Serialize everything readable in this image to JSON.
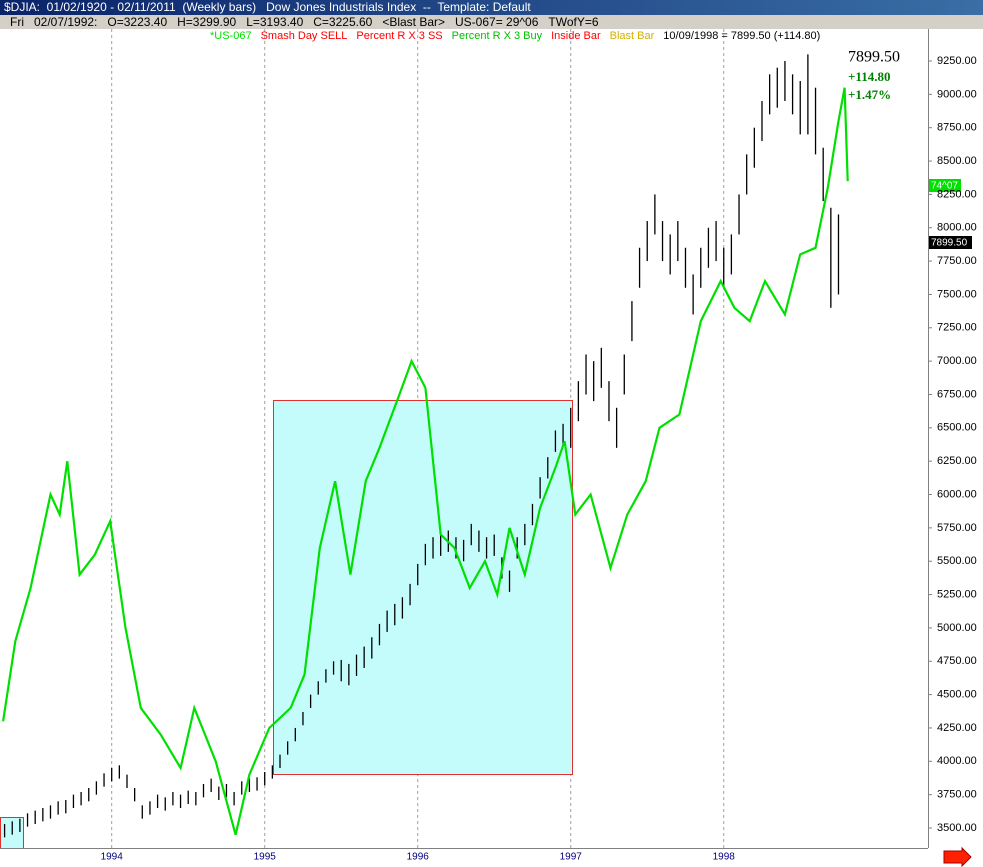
{
  "chart_data": {
    "type": "ohlc",
    "title": "$DJIA:  01/02/1920 - 02/11/2011  (Weekly bars)   Dow Jones Industrials Index  --  Template: Default",
    "bar_info": [
      "Fri",
      "02/07/1992:",
      "O=3223.40",
      "H=3299.90",
      "L=3193.40",
      "C=3225.60",
      "<Blast Bar>",
      "US-067= 29^06",
      "TWofY=6"
    ],
    "indicators": [
      {
        "name": "Smash Day SELL",
        "color": "#ff0000"
      },
      {
        "name": "Percent R X 3 SS",
        "color": "#ff0000"
      },
      {
        "name": "Percent R X 3 Buy",
        "color": "#00c000"
      },
      {
        "name": "Inside Bar",
        "color": "#ff0000"
      },
      {
        "name": "Blast Bar",
        "color": "#d4b000"
      }
    ],
    "legend_price": "10/09/1998 = 7899.50 (+114.80)",
    "last_price": "7899.50",
    "change": "+114.80",
    "change_pct": "+1.47%",
    "bar_color": "#000000",
    "bars": {
      "x": [
        1993.3,
        1993.35,
        1993.4,
        1993.45,
        1993.5,
        1993.55,
        1993.6,
        1993.65,
        1993.7,
        1993.75,
        1993.8,
        1993.85,
        1993.9,
        1993.95,
        1994,
        1994.05,
        1994.1,
        1994.15,
        1994.2,
        1994.25,
        1994.3,
        1994.35,
        1994.4,
        1994.45,
        1994.5,
        1994.55,
        1994.6,
        1994.65,
        1994.7,
        1994.75,
        1994.8,
        1994.85,
        1994.9,
        1994.95,
        1995,
        1995.05,
        1995.1,
        1995.15,
        1995.2,
        1995.25,
        1995.3,
        1995.35,
        1995.4,
        1995.45,
        1995.5,
        1995.55,
        1995.6,
        1995.65,
        1995.7,
        1995.75,
        1995.8,
        1995.85,
        1995.9,
        1995.95,
        1996,
        1996.05,
        1996.1,
        1996.15,
        1996.2,
        1996.25,
        1996.3,
        1996.35,
        1996.4,
        1996.45,
        1996.5,
        1996.55,
        1996.6,
        1996.65,
        1996.7,
        1996.75,
        1996.8,
        1996.85,
        1996.9,
        1996.95,
        1997,
        1997.05,
        1997.1,
        1997.15,
        1997.2,
        1997.25,
        1997.3,
        1997.35,
        1997.4,
        1997.45,
        1997.5,
        1997.55,
        1997.6,
        1997.65,
        1997.7,
        1997.75,
        1997.8,
        1997.85,
        1997.9,
        1997.95,
        1998,
        1998.05,
        1998.1,
        1998.15,
        1998.2,
        1998.25,
        1998.3,
        1998.35,
        1998.4,
        1998.45,
        1998.5,
        1998.55,
        1998.6,
        1998.65,
        1998.7,
        1998.75
      ],
      "high": [
        3530,
        3550,
        3570,
        3610,
        3630,
        3650,
        3670,
        3700,
        3710,
        3750,
        3770,
        3800,
        3850,
        3910,
        3950,
        3970,
        3900,
        3800,
        3670,
        3700,
        3750,
        3730,
        3770,
        3750,
        3780,
        3770,
        3830,
        3870,
        3810,
        3830,
        3770,
        3850,
        3870,
        3880,
        3920,
        3970,
        4050,
        4150,
        4250,
        4370,
        4500,
        4600,
        4690,
        4750,
        4760,
        4730,
        4800,
        4860,
        4930,
        5030,
        5130,
        5180,
        5230,
        5330,
        5480,
        5630,
        5680,
        5700,
        5730,
        5680,
        5660,
        5780,
        5730,
        5680,
        5700,
        5530,
        5430,
        5680,
        5780,
        5930,
        6130,
        6280,
        6480,
        6530,
        6650,
        6850,
        7050,
        7000,
        7100,
        6850,
        6650,
        7050,
        7450,
        7850,
        8050,
        8250,
        8050,
        7950,
        8050,
        7850,
        7650,
        7850,
        8000,
        8050,
        7850,
        7950,
        8250,
        8550,
        8750,
        8950,
        9150,
        9200,
        9250,
        9150,
        9100,
        9300,
        9050,
        8600,
        8150,
        8100
      ],
      "low": [
        3430,
        3450,
        3470,
        3510,
        3530,
        3550,
        3570,
        3600,
        3610,
        3650,
        3670,
        3700,
        3750,
        3810,
        3850,
        3870,
        3800,
        3700,
        3570,
        3600,
        3650,
        3630,
        3670,
        3650,
        3680,
        3670,
        3730,
        3770,
        3710,
        3730,
        3670,
        3750,
        3770,
        3780,
        3820,
        3870,
        3950,
        4050,
        4150,
        4270,
        4400,
        4500,
        4590,
        4650,
        4600,
        4570,
        4640,
        4700,
        4770,
        4870,
        4970,
        5020,
        5070,
        5170,
        5320,
        5470,
        5520,
        5540,
        5570,
        5520,
        5500,
        5620,
        5570,
        5520,
        5540,
        5370,
        5270,
        5520,
        5620,
        5770,
        5970,
        6120,
        6320,
        6370,
        6350,
        6550,
        6750,
        6700,
        6800,
        6550,
        6350,
        6750,
        7150,
        7550,
        7750,
        7950,
        7750,
        7650,
        7750,
        7550,
        7350,
        7550,
        7700,
        7750,
        7550,
        7650,
        7950,
        8250,
        8450,
        8650,
        8850,
        8900,
        8950,
        8850,
        8700,
        8700,
        8550,
        8200,
        7400,
        7500
      ]
    },
    "series": [
      {
        "name": "*US-067",
        "color": "#00e000",
        "last_label": "74^07",
        "x": [
          1993.29,
          1993.37,
          1993.47,
          1993.6,
          1993.66,
          1993.71,
          1993.79,
          1993.89,
          1993.99,
          1994.09,
          1994.19,
          1994.32,
          1994.45,
          1994.54,
          1994.68,
          1994.81,
          1994.9,
          1995.03,
          1995.17,
          1995.26,
          1995.36,
          1995.46,
          1995.56,
          1995.66,
          1995.75,
          1995.88,
          1995.96,
          1996.05,
          1996.15,
          1996.24,
          1996.34,
          1996.44,
          1996.52,
          1996.6,
          1996.7,
          1996.8,
          1996.9,
          1996.96,
          1997.03,
          1997.13,
          1997.26,
          1997.37,
          1997.49,
          1997.58,
          1997.71,
          1997.85,
          1997.98,
          1998.07,
          1998.17,
          1998.27,
          1998.4,
          1998.5,
          1998.6,
          1998.68,
          1998.75,
          1998.79,
          1998.81
        ],
        "values": [
          4300,
          4900,
          5300,
          6000,
          5850,
          6250,
          5400,
          5550,
          5800,
          5000,
          4400,
          4200,
          3950,
          4400,
          4000,
          3450,
          3900,
          4250,
          4400,
          4650,
          5600,
          6100,
          5400,
          6100,
          6350,
          6750,
          7000,
          6800,
          5700,
          5600,
          5300,
          5500,
          5250,
          5750,
          5400,
          5900,
          6200,
          6400,
          5850,
          6000,
          5450,
          5850,
          6100,
          6500,
          6600,
          7300,
          7600,
          7400,
          7300,
          7600,
          7350,
          7800,
          7850,
          8300,
          8800,
          9050,
          8350
        ]
      }
    ],
    "xlim": [
      1993.27,
      1999.335
    ],
    "xticks": [
      1994,
      1995,
      1996,
      1997,
      1998
    ],
    "ylim": [
      3350,
      9490
    ],
    "yticks": [
      {
        "value": 3500,
        "label": "3500.00"
      },
      {
        "value": 3750,
        "label": "3750.00"
      },
      {
        "value": 4000,
        "label": "4000.00"
      },
      {
        "value": 4250,
        "label": "4250.00"
      },
      {
        "value": 4500,
        "label": "4500.00"
      },
      {
        "value": 4750,
        "label": "4750.00"
      },
      {
        "value": 5000,
        "label": "5000.00"
      },
      {
        "value": 5250,
        "label": "5250.00"
      },
      {
        "value": 5500,
        "label": "5500.00"
      },
      {
        "value": 5750,
        "label": "5750.00"
      },
      {
        "value": 6000,
        "label": "6000.00"
      },
      {
        "value": 6250,
        "label": "6250.00"
      },
      {
        "value": 6500,
        "label": "6500.00"
      },
      {
        "value": 6750,
        "label": "6750.00"
      },
      {
        "value": 7000,
        "label": "7000.00"
      },
      {
        "value": 7250,
        "label": "7250.00"
      },
      {
        "value": 7500,
        "label": "7500.00"
      },
      {
        "value": 7750,
        "label": "7750.00"
      },
      {
        "value": 8000,
        "label": "8000.00"
      },
      {
        "value": 8250,
        "label": "8250.00"
      },
      {
        "value": 8500,
        "label": "8500.00"
      },
      {
        "value": 8750,
        "label": "8750.00"
      },
      {
        "value": 9000,
        "label": "9000.00"
      },
      {
        "value": 9250,
        "label": "9250.00"
      }
    ],
    "xgrid": true
  }
}
